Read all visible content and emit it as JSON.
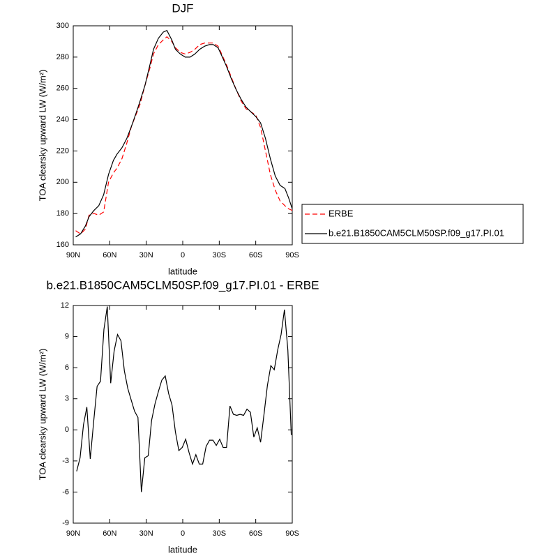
{
  "chart_data": [
    {
      "type": "line",
      "title": "DJF",
      "xlabel": "latitude",
      "ylabel": "TOA clearsky upward LW (W/m²)",
      "x": [
        88,
        84,
        80,
        77,
        73,
        69,
        65,
        61,
        57,
        54,
        50,
        46,
        42,
        38,
        35,
        31,
        27,
        24,
        20,
        16,
        13,
        9,
        6,
        2,
        -2,
        -6,
        -10,
        -14,
        -18,
        -22,
        -25,
        -29,
        -32,
        -36,
        -40,
        -44,
        -48,
        -52,
        -56,
        -60,
        -64,
        -68,
        -72,
        -76,
        -80,
        -84,
        -87,
        -90
      ],
      "series": [
        {
          "name": "ERBE",
          "color": "#ff0000",
          "line_style": "dashed",
          "values": [
            169,
            167,
            170,
            179,
            180,
            179,
            181,
            200,
            206,
            209,
            215,
            225,
            236,
            244,
            250,
            262,
            273,
            282,
            288,
            291,
            293,
            290,
            286,
            283,
            282,
            283,
            285,
            288,
            289,
            289,
            289,
            287,
            282,
            275,
            267,
            259,
            252,
            247,
            245,
            243,
            235,
            220,
            205,
            195,
            188,
            185,
            183,
            182
          ]
        },
        {
          "name": "b.e21.B1850CAM5CLM50SP.f09_g17.PI.01",
          "color": "#000000",
          "line_style": "solid",
          "values": [
            165,
            167,
            172,
            178,
            182,
            185,
            192,
            205,
            214,
            218,
            222,
            228,
            236,
            245,
            252,
            262,
            275,
            285,
            292,
            296,
            297,
            291,
            285,
            282,
            280,
            280,
            282,
            285,
            287,
            288,
            288,
            286,
            281,
            274,
            266,
            259,
            253,
            248,
            245,
            242,
            238,
            228,
            215,
            204,
            198,
            196,
            190,
            183
          ]
        }
      ],
      "xlim": [
        90,
        -90
      ],
      "xticks": [
        {
          "value": 90,
          "label": "90N"
        },
        {
          "value": 60,
          "label": "60N"
        },
        {
          "value": 30,
          "label": "30N"
        },
        0,
        {
          "value": -30,
          "label": "30S"
        },
        {
          "value": -60,
          "label": "60S"
        },
        {
          "value": -90,
          "label": "90S"
        }
      ],
      "ylim": [
        160,
        300
      ],
      "yticks": [
        160,
        180,
        200,
        220,
        240,
        260,
        280,
        300
      ],
      "legend": "right"
    },
    {
      "type": "line",
      "title": "b.e21.B1850CAM5CLM50SP.f09_g17.PI.01 - ERBE",
      "xlabel": "latitude",
      "ylabel": "TOA clearsky upward LW (W/m²)",
      "x": [
        87.2,
        84.4,
        81.6,
        78.8,
        76,
        73.2,
        70.4,
        67.6,
        64.8,
        62,
        59.2,
        56.4,
        53.6,
        50.8,
        48,
        45.2,
        42.4,
        39.6,
        36.8,
        34,
        31.2,
        28.4,
        25.6,
        22.8,
        20,
        17.2,
        14.4,
        11.6,
        8.8,
        6,
        3.2,
        0.4,
        -2.4,
        -5.2,
        -8,
        -10.8,
        -13.6,
        -16.4,
        -19.2,
        -22,
        -24.8,
        -27.6,
        -30.4,
        -33.2,
        -36,
        -38.8,
        -41.6,
        -44.4,
        -47.2,
        -50,
        -52.8,
        -55.6,
        -58.4,
        -61.2,
        -64,
        -66.8,
        -69.6,
        -72.4,
        -75.2,
        -78,
        -80.8,
        -83.6,
        -86.4,
        -89.2
      ],
      "series": [
        {
          "color": "#000000",
          "line_style": "solid",
          "values": [
            -4.0,
            -2.7,
            0.5,
            2.2,
            -2.8,
            0.8,
            4.2,
            4.7,
            9.7,
            11.9,
            4.5,
            7.6,
            9.2,
            8.6,
            5.7,
            4.0,
            2.9,
            1.8,
            1.2,
            -6.0,
            -2.7,
            -2.5,
            0.9,
            2.5,
            3.7,
            4.8,
            5.2,
            3.5,
            2.4,
            -0.2,
            -2.0,
            -1.7,
            -0.9,
            -2.2,
            -3.3,
            -2.4,
            -3.3,
            -3.3,
            -1.6,
            -1.0,
            -1.0,
            -1.5,
            -0.9,
            -1.7,
            -1.7,
            2.3,
            1.5,
            1.4,
            1.5,
            1.4,
            2.0,
            1.7,
            -0.7,
            0.2,
            -1.2,
            1.5,
            4.3,
            6.2,
            5.8,
            7.7,
            9.2,
            11.6,
            7.7,
            -0.5
          ]
        }
      ],
      "xlim": [
        90,
        -90
      ],
      "xticks": [
        {
          "value": 90,
          "label": "90N"
        },
        {
          "value": 60,
          "label": "60N"
        },
        {
          "value": 30,
          "label": "30N"
        },
        0,
        {
          "value": -30,
          "label": "30S"
        },
        {
          "value": -60,
          "label": "60S"
        },
        {
          "value": -90,
          "label": "90S"
        }
      ],
      "ylim": [
        -9,
        12
      ],
      "yticks": [
        -9,
        -6,
        -3,
        0,
        3,
        6,
        9,
        12
      ]
    }
  ]
}
